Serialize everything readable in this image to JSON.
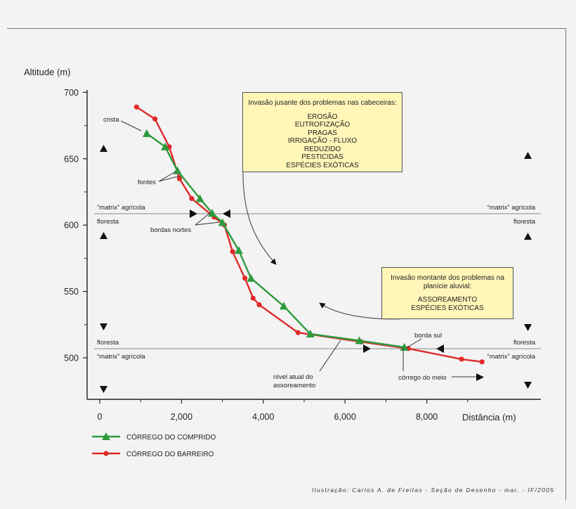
{
  "chart_data": {
    "type": "line",
    "ylabel": "Altitude (m)",
    "xlabel": "Distância (m)",
    "xlim": [
      -300,
      11000
    ],
    "ylim": [
      485,
      705
    ],
    "y_ticks": [
      500,
      550,
      600,
      650,
      700
    ],
    "x_ticks": [
      {
        "value": 0,
        "label": "0"
      },
      {
        "value": 2000,
        "label": "2,000"
      },
      {
        "value": 4000,
        "label": "4,000"
      },
      {
        "value": 6000,
        "label": "6,000"
      },
      {
        "value": 8000,
        "label": "8,000"
      }
    ],
    "series": [
      {
        "name": "CÓRREGO DO COMPRIDO",
        "color": "#2e9a3e",
        "marker": "triangle",
        "x": [
          1150,
          1600,
          1900,
          2450,
          2750,
          3000,
          3400,
          3700,
          4500,
          5150,
          6350,
          7450
        ],
        "y": [
          669,
          659,
          641,
          620,
          609,
          602,
          581,
          560,
          539,
          518,
          513,
          508
        ]
      },
      {
        "name": "CÓRREGO DO BARREIRO",
        "color": "#e02a2a",
        "marker": "circle",
        "x": [
          900,
          1350,
          1700,
          1950,
          2250,
          2800,
          3050,
          3250,
          3550,
          3750,
          3900,
          4850,
          6400,
          7550,
          8850,
          9350
        ],
        "y": [
          689,
          680,
          659,
          635,
          620,
          606,
          600,
          580,
          560,
          545,
          540,
          519,
          512,
          507,
          499,
          497
        ]
      }
    ],
    "annotations": {
      "crista": "crista",
      "fontes": "fontes",
      "bordas_nortes": "bordas nortes",
      "borda_sul": "borda sul",
      "nivel_line1": "nível atual do",
      "nivel_line2": "assoreamento",
      "corrego_meio": "córrego do meio",
      "matrix_agricola": "“matrix” agrícola",
      "floresta": "floresta"
    },
    "callout_top": {
      "heading": "Invasão jusante dos problemas nas cabeceiras:",
      "items": [
        "EROSÃO",
        "EUTROFIZAÇÃO",
        "PRAGAS",
        "IRRIGAÇÃO - FLUXO",
        "REDUZIDO",
        "PESTICIDAS",
        "ESPÉCIES EXÓTICAS"
      ]
    },
    "callout_bottom": {
      "heading_line1": "Invasão montante dos problemas na",
      "heading_line2": "planície aluvial:",
      "items": [
        "ASSOREAMENTO",
        "ESPÉCIES EXÓTICAS"
      ]
    }
  },
  "credit": "Ilustração: Carlos A. de Freitas - Seção de Desenho - mar. - IF/2005"
}
